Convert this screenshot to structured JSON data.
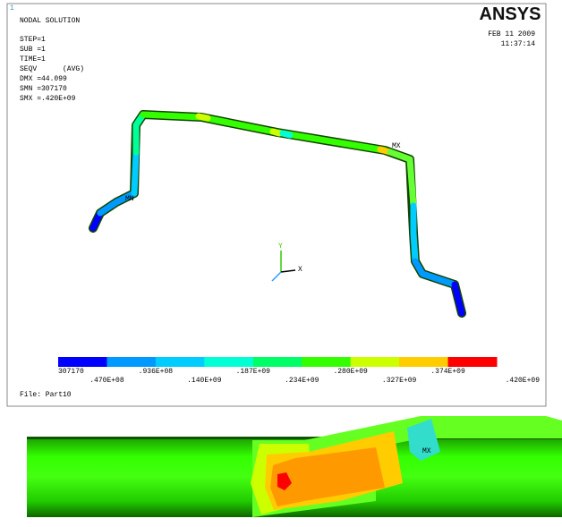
{
  "header": {
    "window_number": "1",
    "title": "NODAL SOLUTION",
    "step": "STEP=1",
    "sub": "SUB =1",
    "time": "TIME=1",
    "result": "SEQV      (AVG)",
    "dmx": "DMX =44.099",
    "smn": "SMN =307170",
    "smx": "SMX =.420E+09",
    "logo": "ANSYS",
    "date": "FEB 11 2009",
    "clock": "11:37:14"
  },
  "markers": {
    "max": "MX",
    "min": "MN",
    "axis_y": "Y",
    "axis_x": "X",
    "detail_max": "MX"
  },
  "legend": {
    "labels": [
      "307170",
      ".470E+08",
      ".936E+08",
      ".140E+09",
      ".187E+09",
      ".234E+09",
      ".280E+09",
      ".327E+09",
      ".374E+09",
      ".420E+09"
    ],
    "colors": [
      "#0000ff",
      "#0099ff",
      "#00ccff",
      "#00ffd5",
      "#00ff66",
      "#33ff00",
      "#ccff00",
      "#ffcc00",
      "#ff0000"
    ]
  },
  "footer": {
    "file": "File: Part10"
  }
}
